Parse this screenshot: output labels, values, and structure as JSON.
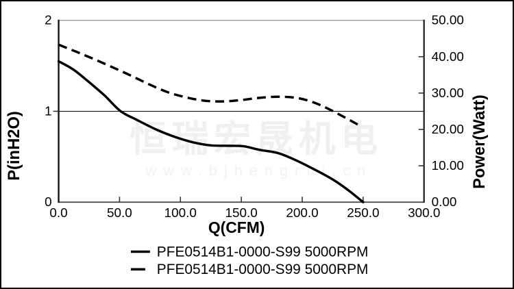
{
  "watermark": {
    "company": "恒瑞宏晟机电",
    "website": "www.bjhengrui.cn"
  },
  "chart_data": {
    "type": "line",
    "title": "",
    "xlabel": "Q(CFM)",
    "ylabel_left": "P(inH2O)",
    "ylabel_right": "Power(Watt)",
    "x_range": [
      0,
      300
    ],
    "y_left_range": [
      0,
      2
    ],
    "y_right_range": [
      0,
      50
    ],
    "x_ticks": [
      0,
      50,
      100,
      150,
      200,
      250,
      300
    ],
    "x_tick_labels": [
      "0.0",
      "50.0",
      "100.0",
      "150.0",
      "200.0",
      "250.0",
      "300.0"
    ],
    "y_left_ticks": [
      0,
      1,
      2
    ],
    "y_left_tick_labels": [
      "0",
      "1",
      "2"
    ],
    "y_right_ticks": [
      0,
      10,
      20,
      30,
      40,
      50
    ],
    "y_right_tick_labels": [
      "0.00",
      "10.00",
      "20.00",
      "30.00",
      "40.00",
      "50.00"
    ],
    "reference_line_y_left": 1,
    "grid": "single horizontal line at P=1 (Power=25)",
    "legend_position": "bottom-center",
    "series": [
      {
        "name": "PFE0514B1-0000-S99 5000RPM",
        "line_style": "solid",
        "axis": "left",
        "x": [
          0,
          12,
          25,
          38,
          51,
          65,
          80,
          95,
          110,
          125,
          140,
          152,
          165,
          180,
          195,
          210,
          225,
          238,
          250
        ],
        "y": [
          1.55,
          1.46,
          1.32,
          1.17,
          1.0,
          0.9,
          0.8,
          0.72,
          0.66,
          0.625,
          0.62,
          0.615,
          0.575,
          0.54,
          0.46,
          0.36,
          0.25,
          0.13,
          0.0
        ]
      },
      {
        "name": "PFE0514B1-0000-S99 5000RPM",
        "line_style": "dashed",
        "axis": "right",
        "x": [
          0,
          15,
          30,
          45,
          60,
          75,
          90,
          105,
          120,
          135,
          150,
          165,
          180,
          195,
          208,
          220,
          235,
          248
        ],
        "y": [
          43.3,
          41.3,
          39.2,
          37.0,
          34.7,
          32.3,
          30.2,
          28.8,
          27.9,
          27.7,
          28.1,
          28.7,
          29.0,
          28.7,
          27.6,
          25.9,
          23.3,
          20.9
        ]
      }
    ]
  },
  "colors": {
    "curve": "#000000",
    "frame_top": "#999999",
    "frame_bottom": "#4d4d4d",
    "axis_side": "#1a1a1a",
    "reference_line": "#000000",
    "watermark": "#f0f0f0",
    "background": "#ffffff",
    "border": "#000000"
  }
}
